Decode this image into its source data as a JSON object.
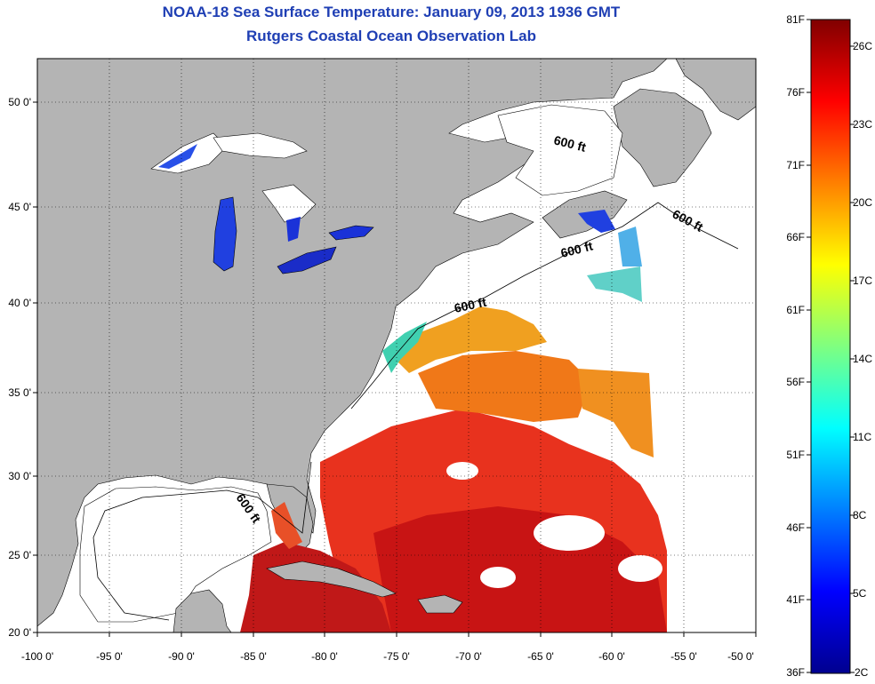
{
  "title": "NOAA-18 Sea Surface Temperature:  January 09, 2013 1936 GMT",
  "subtitle": "Rutgers Coastal Ocean Observation Lab",
  "colors": {
    "land": "#b4b4b4",
    "water_nodata": "#ffffff",
    "grid": "#000000"
  },
  "axes": {
    "lon_labels": [
      "-100 0'",
      "-95 0'",
      "-90 0'",
      "-85 0'",
      "-80 0'",
      "-75 0'",
      "-70 0'",
      "-65 0'",
      "-60 0'",
      "-55 0'",
      "-50 0'"
    ],
    "lat_labels": [
      "50 0'",
      "45 0'",
      "40 0'",
      "35 0'",
      "30 0'",
      "25 0'",
      "20 0'"
    ]
  },
  "contour_label": "600 ft",
  "colorbar": {
    "fahrenheit": [
      "81F",
      "76F",
      "71F",
      "66F",
      "61F",
      "56F",
      "51F",
      "46F",
      "41F",
      "36F"
    ],
    "celsius": [
      "26C",
      "23C",
      "20C",
      "17C",
      "14C",
      "11C",
      "8C",
      "5C",
      "2C"
    ]
  }
}
